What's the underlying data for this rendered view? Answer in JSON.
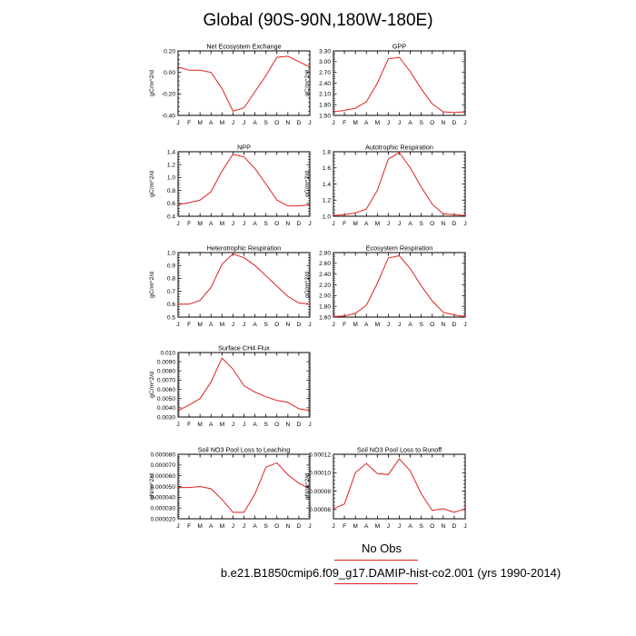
{
  "title": "Global (90S-90N,180W-180E)",
  "legend": {
    "obs_label": "No Obs",
    "case_label": "b.e21.B1850cmip6.f09_g17.DAMIP-hist-co2.001 (yrs 1990-2014)",
    "line_color": "#e02020"
  },
  "chart_data": [
    {
      "type": "line",
      "title": "Net Ecosystem Exchange",
      "ylabel": "gC/m^2/d",
      "categories": [
        "J",
        "F",
        "M",
        "A",
        "M",
        "J",
        "J",
        "A",
        "S",
        "O",
        "N",
        "D",
        "J"
      ],
      "ylim": [
        -0.4,
        0.2
      ],
      "yticks": [
        -0.4,
        -0.2,
        0.0,
        0.2
      ],
      "ytick_labels": [
        "-0.40",
        "-0.20",
        "0.00",
        "0.20"
      ],
      "series": [
        {
          "values": [
            0.05,
            0.02,
            0.02,
            0.0,
            -0.15,
            -0.36,
            -0.33,
            -0.18,
            -0.03,
            0.14,
            0.15,
            0.1,
            0.05
          ]
        }
      ]
    },
    {
      "type": "line",
      "title": "GPP",
      "ylabel": "gC/m^2/d",
      "categories": [
        "J",
        "F",
        "M",
        "A",
        "M",
        "J",
        "J",
        "A",
        "S",
        "O",
        "N",
        "D",
        "J"
      ],
      "ylim": [
        1.5,
        3.3
      ],
      "yticks": [
        1.5,
        1.8,
        2.1,
        2.4,
        2.7,
        3.0,
        3.3
      ],
      "ytick_labels": [
        "1.50",
        "1.80",
        "2.10",
        "2.40",
        "2.70",
        "3.00",
        "3.30"
      ],
      "series": [
        {
          "values": [
            1.6,
            1.64,
            1.7,
            1.88,
            2.4,
            3.08,
            3.12,
            2.72,
            2.24,
            1.82,
            1.6,
            1.58,
            1.6
          ]
        }
      ]
    },
    {
      "type": "line",
      "title": "NPP",
      "ylabel": "gC/m^2/d",
      "categories": [
        "J",
        "F",
        "M",
        "A",
        "M",
        "J",
        "J",
        "A",
        "S",
        "O",
        "N",
        "D",
        "J"
      ],
      "ylim": [
        0.4,
        1.4
      ],
      "yticks": [
        0.4,
        0.6,
        0.8,
        1.0,
        1.2,
        1.4
      ],
      "ytick_labels": [
        "0.4",
        "0.6",
        "0.8",
        "1.0",
        "1.2",
        "1.4"
      ],
      "series": [
        {
          "values": [
            0.58,
            0.61,
            0.65,
            0.78,
            1.1,
            1.36,
            1.32,
            1.14,
            0.9,
            0.65,
            0.56,
            0.56,
            0.58
          ]
        }
      ]
    },
    {
      "type": "line",
      "title": "Autotrophic Respiration",
      "ylabel": "gC/m^2/d",
      "categories": [
        "J",
        "F",
        "M",
        "A",
        "M",
        "J",
        "J",
        "A",
        "S",
        "O",
        "N",
        "D",
        "J"
      ],
      "ylim": [
        1.0,
        1.8
      ],
      "yticks": [
        1.0,
        1.2,
        1.4,
        1.6,
        1.8
      ],
      "ytick_labels": [
        "1.0",
        "1.2",
        "1.4",
        "1.6",
        "1.8"
      ],
      "series": [
        {
          "values": [
            1.01,
            1.02,
            1.04,
            1.09,
            1.32,
            1.71,
            1.79,
            1.6,
            1.36,
            1.15,
            1.03,
            1.02,
            1.01
          ]
        }
      ]
    },
    {
      "type": "line",
      "title": "Heterotrophic Respiration",
      "ylabel": "gC/m^2/d",
      "categories": [
        "J",
        "F",
        "M",
        "A",
        "M",
        "J",
        "J",
        "A",
        "S",
        "O",
        "N",
        "D",
        "J"
      ],
      "ylim": [
        0.5,
        1.0
      ],
      "yticks": [
        0.5,
        0.6,
        0.7,
        0.8,
        0.9,
        1.0
      ],
      "ytick_labels": [
        "0.5",
        "0.6",
        "0.7",
        "0.8",
        "0.9",
        "1.0"
      ],
      "series": [
        {
          "values": [
            0.6,
            0.6,
            0.63,
            0.73,
            0.91,
            0.99,
            0.96,
            0.9,
            0.82,
            0.74,
            0.66,
            0.61,
            0.6
          ]
        }
      ]
    },
    {
      "type": "line",
      "title": "Ecosystem Respiration",
      "ylabel": "gC/m^2/d",
      "categories": [
        "J",
        "F",
        "M",
        "A",
        "M",
        "J",
        "J",
        "A",
        "S",
        "O",
        "N",
        "D",
        "J"
      ],
      "ylim": [
        1.6,
        2.8
      ],
      "yticks": [
        1.6,
        1.8,
        2.0,
        2.2,
        2.4,
        2.6,
        2.8
      ],
      "ytick_labels": [
        "1.60",
        "1.80",
        "2.00",
        "2.20",
        "2.40",
        "2.60",
        "2.80"
      ],
      "series": [
        {
          "values": [
            1.61,
            1.62,
            1.67,
            1.82,
            2.23,
            2.7,
            2.74,
            2.5,
            2.18,
            1.9,
            1.69,
            1.64,
            1.61
          ]
        }
      ]
    },
    {
      "type": "line",
      "title": "Surface CH4 Flux",
      "ylabel": "gC/m^2/d",
      "categories": [
        "J",
        "F",
        "M",
        "A",
        "M",
        "J",
        "J",
        "A",
        "S",
        "O",
        "N",
        "D",
        "J"
      ],
      "ylim": [
        0.003,
        0.01
      ],
      "yticks": [
        0.003,
        0.004,
        0.005,
        0.006,
        0.007,
        0.008,
        0.009,
        0.01
      ],
      "ytick_labels": [
        "0.0030",
        "0.0040",
        "0.0050",
        "0.0060",
        "0.0070",
        "0.0080",
        "0.0090",
        "0.010"
      ],
      "series": [
        {
          "values": [
            0.0037,
            0.0043,
            0.005,
            0.0068,
            0.0094,
            0.0082,
            0.0064,
            0.0057,
            0.0052,
            0.0048,
            0.0046,
            0.0039,
            0.0037
          ]
        }
      ]
    },
    {
      "type": "line",
      "title": "Soil NO3 Pool Loss to Leaching",
      "ylabel": "gN/m^2/d",
      "categories": [
        "J",
        "F",
        "M",
        "A",
        "M",
        "J",
        "J",
        "A",
        "S",
        "O",
        "N",
        "D",
        "J"
      ],
      "ylim": [
        2e-05,
        8e-05
      ],
      "yticks": [
        2e-05,
        3e-05,
        4e-05,
        5e-05,
        6e-05,
        7e-05,
        8e-05
      ],
      "ytick_labels": [
        "0.000020",
        "0.000030",
        "0.000040",
        "0.000050",
        "0.000060",
        "0.000070",
        "0.000080"
      ],
      "series": [
        {
          "values": [
            4.9e-05,
            4.9e-05,
            5e-05,
            4.8e-05,
            3.8e-05,
            2.6e-05,
            2.6e-05,
            4.3e-05,
            6.8e-05,
            7.2e-05,
            6.1e-05,
            5.3e-05,
            4.8e-05
          ]
        }
      ]
    },
    {
      "type": "line",
      "title": "Soil NO3 Pool Loss to Runoff",
      "ylabel": "gN/m^2/d",
      "categories": [
        "J",
        "F",
        "M",
        "A",
        "M",
        "J",
        "J",
        "A",
        "S",
        "O",
        "N",
        "D",
        "J"
      ],
      "ylim": [
        5e-05,
        0.00012
      ],
      "yticks": [
        6e-05,
        8e-05,
        0.0001,
        0.00012
      ],
      "ytick_labels": [
        "0.00006",
        "0.00008",
        "0.00010",
        "0.00012"
      ],
      "series": [
        {
          "values": [
            6.1e-05,
            6.6e-05,
            0.0001,
            0.00011,
            9.9e-05,
            9.8e-05,
            0.000115,
            0.000102,
            7.7e-05,
            5.9e-05,
            6.1e-05,
            5.7e-05,
            6.1e-05
          ]
        }
      ]
    }
  ]
}
